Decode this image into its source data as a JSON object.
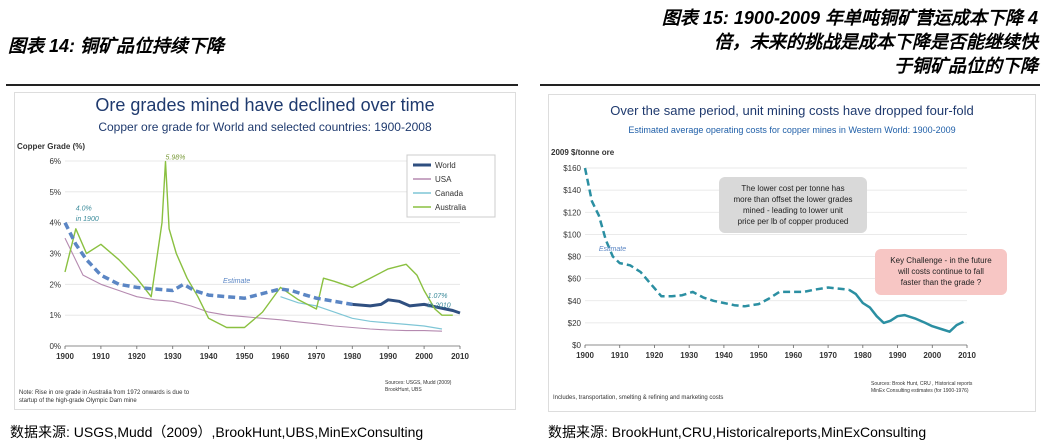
{
  "left": {
    "figure_title": "图表 14:  铜矿品位持续下降",
    "source": "数据来源:  USGS,Mudd（2009）,BrookHunt,UBS,MinExConsulting",
    "chart_data": {
      "type": "line",
      "title": "Ore grades mined have declined over time",
      "subtitle": "Copper ore grade for World and selected countries: 1900-2008",
      "ylabel": "Copper Grade (%)",
      "xlim": [
        1900,
        2010
      ],
      "ylim": [
        0,
        6
      ],
      "x_ticks": [
        "1900",
        "1910",
        "1920",
        "1930",
        "1940",
        "1950",
        "1960",
        "1970",
        "1980",
        "1990",
        "2000",
        "2010"
      ],
      "y_ticks": [
        "0%",
        "1%",
        "2%",
        "3%",
        "4%",
        "5%",
        "6%"
      ],
      "legend_position": "top-right",
      "series": [
        {
          "name": "World",
          "color": "#2f4f80",
          "dash": false,
          "x": [
            1980,
            1985,
            1988,
            1990,
            1993,
            1996,
            2000,
            2004,
            2008,
            2010
          ],
          "y": [
            1.35,
            1.3,
            1.35,
            1.5,
            1.45,
            1.3,
            1.35,
            1.25,
            1.15,
            1.07
          ]
        },
        {
          "name": "USA",
          "color": "#b58ab0",
          "dash": false,
          "x": [
            1900,
            1905,
            1910,
            1915,
            1920,
            1925,
            1930,
            1935,
            1940,
            1945,
            1950,
            1955,
            1960,
            1965,
            1970,
            1975,
            1980,
            1985,
            1990,
            1995,
            2000,
            2005
          ],
          "y": [
            3.5,
            2.3,
            2.0,
            1.8,
            1.6,
            1.5,
            1.45,
            1.3,
            1.1,
            1.0,
            0.95,
            0.9,
            0.85,
            0.78,
            0.72,
            0.65,
            0.6,
            0.55,
            0.52,
            0.5,
            0.5,
            0.48
          ]
        },
        {
          "name": "Canada",
          "color": "#7fc6d6",
          "dash": false,
          "x": [
            1960,
            1965,
            1970,
            1975,
            1980,
            1985,
            1990,
            1995,
            2000,
            2005
          ],
          "y": [
            1.6,
            1.4,
            1.3,
            1.1,
            0.9,
            0.8,
            0.75,
            0.7,
            0.65,
            0.55
          ]
        },
        {
          "name": "Australia",
          "color": "#8ac040",
          "dash": false,
          "x": [
            1900,
            1903,
            1906,
            1910,
            1915,
            1920,
            1924,
            1927,
            1928,
            1929,
            1931,
            1934,
            1937,
            1940,
            1945,
            1950,
            1955,
            1960,
            1965,
            1970,
            1972,
            1975,
            1980,
            1985,
            1990,
            1995,
            1998,
            2000,
            2003,
            2005,
            2008
          ],
          "y": [
            2.4,
            3.8,
            3.0,
            3.3,
            2.8,
            2.2,
            1.6,
            4.0,
            5.98,
            3.8,
            3.0,
            2.2,
            1.6,
            0.9,
            0.6,
            0.6,
            1.1,
            1.9,
            1.5,
            1.2,
            2.2,
            2.1,
            1.9,
            2.2,
            2.5,
            2.65,
            2.3,
            1.8,
            1.2,
            1.0,
            1.0
          ]
        },
        {
          "name": "",
          "color": "#5b86c4",
          "dash": true,
          "x": [
            1900,
            1903,
            1906,
            1910,
            1915,
            1920,
            1925,
            1930,
            1933,
            1936,
            1940,
            1945,
            1950,
            1955,
            1960,
            1963,
            1967,
            1970,
            1975,
            1980
          ],
          "y": [
            4.0,
            3.3,
            2.8,
            2.3,
            2.0,
            1.9,
            1.85,
            1.8,
            2.0,
            1.8,
            1.65,
            1.6,
            1.55,
            1.7,
            1.85,
            1.8,
            1.65,
            1.55,
            1.45,
            1.35
          ]
        }
      ],
      "annotations": [
        {
          "text": "4.0%",
          "x": 1903,
          "y": 4.4,
          "color": "#3a8a9a"
        },
        {
          "text": "in 1900",
          "x": 1903,
          "y": 4.05,
          "color": "#3a8a9a"
        },
        {
          "text": "5.98%",
          "x": 1928,
          "y": 6.05,
          "color": "#7a9a3a"
        },
        {
          "text": "Estimate",
          "x": 1944,
          "y": 2.05,
          "color": "#5b86c4"
        },
        {
          "text": "1.07%",
          "x": 2001,
          "y": 1.55,
          "color": "#3a8a9a"
        },
        {
          "text": "in 2010",
          "x": 2001,
          "y": 1.25,
          "color": "#3a8a9a"
        }
      ],
      "notes": [
        "Note: Rise in ore grade in Australia  from 1972 onwards is due to",
        "startup of the high-grade Olympic Dam mine"
      ],
      "sources": [
        "Sources: USGS, Mudd (2009)",
        "BrookHunt, UBS"
      ]
    }
  },
  "right": {
    "figure_title_lines": [
      "图表 15:  1900-2009 年单吨铜矿营运成本下降 4",
      "倍，未来的挑战是成本下降是否能继续快",
      "于铜矿品位的下降"
    ],
    "source": "数据来源:  BrookHunt,CRU,Historicalreports,MinExConsulting",
    "chart_data": {
      "type": "line",
      "title": "Over the same period, unit mining costs have dropped four-fold",
      "subtitle": "Estimated average operating costs for copper mines in Western World: 1900-2009",
      "ylabel": "2009 $/tonne ore",
      "xlim": [
        1900,
        2010
      ],
      "ylim": [
        0,
        160
      ],
      "x_ticks": [
        "1900",
        "1910",
        "1920",
        "1930",
        "1940",
        "1950",
        "1960",
        "1970",
        "1980",
        "1990",
        "2000",
        "2010"
      ],
      "y_ticks": [
        "$0",
        "$20",
        "$40",
        "$60",
        "$80",
        "$100",
        "$120",
        "$140",
        "$160"
      ],
      "series": [
        {
          "name": "",
          "color": "#2b8fa2",
          "dash": true,
          "x": [
            1900,
            1902,
            1904,
            1906,
            1908,
            1910,
            1913,
            1916,
            1919,
            1922,
            1925,
            1928,
            1931,
            1934,
            1937,
            1940,
            1943,
            1946,
            1950,
            1953,
            1956,
            1960,
            1963,
            1966,
            1970,
            1973,
            1976
          ],
          "y": [
            160,
            130,
            117,
            95,
            80,
            74,
            72,
            66,
            55,
            44,
            44,
            45,
            48,
            43,
            40,
            38,
            36,
            35,
            37,
            42,
            48,
            48,
            48,
            50,
            52,
            51,
            50
          ]
        },
        {
          "name": "",
          "color": "#2b8fa2",
          "dash": false,
          "x": [
            1976,
            1978,
            1980,
            1982,
            1984,
            1986,
            1988,
            1990,
            1992,
            1995,
            1998,
            2000,
            2003,
            2005,
            2007,
            2009
          ],
          "y": [
            50,
            46,
            38,
            34,
            26,
            20,
            22,
            26,
            27,
            24,
            20,
            17,
            14,
            12,
            18,
            21
          ]
        }
      ],
      "annotations": [
        {
          "text": "Estimate",
          "x": 1904,
          "y": 85,
          "color": "#5b86c4"
        }
      ],
      "callouts": [
        {
          "lines": [
            "The lower cost per tonne has",
            "more than offset the lower grades",
            "mined  - leading to lower unit",
            "price per lb of copper produced"
          ],
          "fill": "#d9d9d9"
        },
        {
          "lines": [
            "Key Challenge - in the future",
            "will costs continue to fall",
            "faster than the grade  ?"
          ],
          "fill": "#f7c6c4"
        }
      ],
      "notes": [
        "Includes, transportation,  smelting & refining and marketing costs"
      ],
      "sources": [
        "Sources:  Brook Hunt, CRU , Historical reports",
        "MinEx Consulting estimates (for 1900-1976)"
      ]
    }
  }
}
